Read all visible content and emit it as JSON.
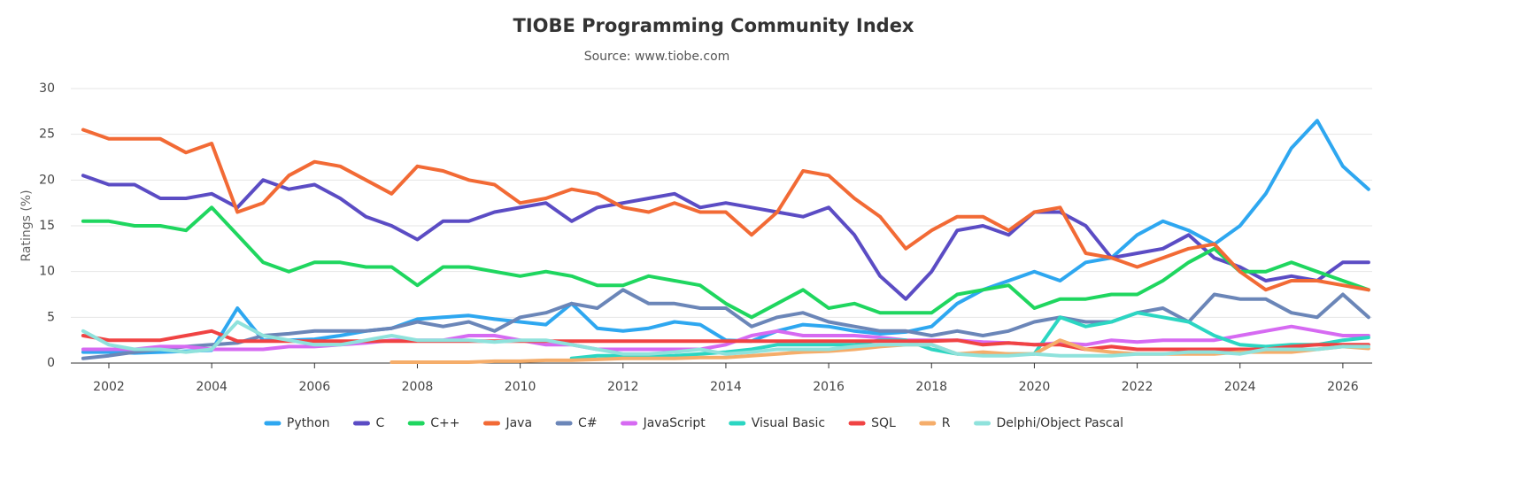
{
  "chart_data": {
    "type": "line",
    "title": "TIOBE Programming Community Index",
    "subtitle": "Source: www.tiobe.com",
    "y_label": "Ratings (%)",
    "xlim": [
      2001.26,
      2026.57
    ],
    "xticks": [
      2002,
      2004,
      2006,
      2008,
      2010,
      2012,
      2014,
      2016,
      2018,
      2020,
      2022,
      2024,
      2026
    ],
    "ylim": [
      0,
      30
    ],
    "yticks": [
      0,
      5,
      10,
      15,
      20,
      25,
      30
    ],
    "grid": true,
    "legend": "bottom",
    "x": [
      2001.5,
      2002,
      2002.5,
      2003,
      2003.5,
      2004,
      2004.5,
      2005,
      2005.5,
      2006,
      2006.5,
      2007,
      2007.5,
      2008,
      2008.5,
      2009,
      2009.5,
      2010,
      2010.5,
      2011,
      2011.5,
      2012,
      2012.5,
      2013,
      2013.5,
      2014,
      2014.5,
      2015,
      2015.5,
      2016,
      2016.5,
      2017,
      2017.5,
      2018,
      2018.5,
      2019,
      2019.5,
      2020,
      2020.5,
      2021,
      2021.5,
      2022,
      2022.5,
      2023,
      2023.5,
      2024,
      2024.5,
      2025,
      2025.5,
      2026,
      2026.5
    ],
    "series": [
      {
        "name": "Python",
        "color": "#2ea7f0",
        "values": [
          1.2,
          1.2,
          1.1,
          1.2,
          1.3,
          1.4,
          6.0,
          2.5,
          2.5,
          2.6,
          3.0,
          3.5,
          3.8,
          4.8,
          5.0,
          5.2,
          4.8,
          4.5,
          4.2,
          6.5,
          3.8,
          3.5,
          3.8,
          4.5,
          4.2,
          2.5,
          2.4,
          3.5,
          4.2,
          4.0,
          3.5,
          3.2,
          3.4,
          4.0,
          6.5,
          8.0,
          9.0,
          10.0,
          9.0,
          11.0,
          11.5,
          14.0,
          15.5,
          14.5,
          13.0,
          15.0,
          18.5,
          23.5,
          26.5,
          21.5,
          19.0
        ]
      },
      {
        "name": "C",
        "color": "#5b4cc4",
        "values": [
          20.5,
          19.5,
          19.5,
          18.0,
          18.0,
          18.5,
          17.0,
          20.0,
          19.0,
          19.5,
          18.0,
          16.0,
          15.0,
          13.5,
          15.5,
          15.5,
          16.5,
          17.0,
          17.5,
          15.5,
          17.0,
          17.5,
          18.0,
          18.5,
          17.0,
          17.5,
          17.0,
          16.5,
          16.0,
          17.0,
          14.0,
          9.5,
          7.0,
          10.0,
          14.5,
          15.0,
          14.0,
          16.5,
          16.5,
          15.0,
          11.5,
          12.0,
          12.5,
          14.0,
          11.5,
          10.5,
          9.0,
          9.5,
          9.0,
          11.0,
          11.0
        ]
      },
      {
        "name": "C++",
        "color": "#1fd65f",
        "values": [
          15.5,
          15.5,
          15.0,
          15.0,
          14.5,
          17.0,
          14.0,
          11.0,
          10.0,
          11.0,
          11.0,
          10.5,
          10.5,
          8.5,
          10.5,
          10.5,
          10.0,
          9.5,
          10.0,
          9.5,
          8.5,
          8.5,
          9.5,
          9.0,
          8.5,
          6.5,
          5.0,
          6.5,
          8.0,
          6.0,
          6.5,
          5.5,
          5.5,
          5.5,
          7.5,
          8.0,
          8.5,
          6.0,
          7.0,
          7.0,
          7.5,
          7.5,
          9.0,
          11.0,
          12.5,
          10.0,
          10.0,
          11.0,
          10.0,
          9.0,
          8.0
        ]
      },
      {
        "name": "Java",
        "color": "#f26a35",
        "values": [
          25.5,
          24.5,
          24.5,
          24.5,
          23.0,
          24.0,
          16.5,
          17.5,
          20.5,
          22.0,
          21.5,
          20.0,
          18.5,
          21.5,
          21.0,
          20.0,
          19.5,
          17.5,
          18.0,
          19.0,
          18.5,
          17.0,
          16.5,
          17.5,
          16.5,
          16.5,
          14.0,
          16.5,
          21.0,
          20.5,
          18.0,
          16.0,
          12.5,
          14.5,
          16.0,
          16.0,
          14.5,
          16.5,
          17.0,
          12.0,
          11.5,
          10.5,
          11.5,
          12.5,
          13.0,
          10.0,
          8.0,
          9.0,
          9.0,
          8.5,
          8.0
        ]
      },
      {
        "name": "C#",
        "color": "#6b86b8",
        "values": [
          0.5,
          0.8,
          1.2,
          1.5,
          1.8,
          2.0,
          2.2,
          3.0,
          3.2,
          3.5,
          3.5,
          3.5,
          3.8,
          4.5,
          4.0,
          4.5,
          3.5,
          5.0,
          5.5,
          6.5,
          6.0,
          8.0,
          6.5,
          6.5,
          6.0,
          6.0,
          4.0,
          5.0,
          5.5,
          4.5,
          4.0,
          3.5,
          3.5,
          3.0,
          3.5,
          3.0,
          3.5,
          4.5,
          5.0,
          4.5,
          4.5,
          5.5,
          6.0,
          4.5,
          7.5,
          7.0,
          7.0,
          5.5,
          5.0,
          7.5,
          5.0
        ]
      },
      {
        "name": "JavaScript",
        "color": "#d66af2",
        "values": [
          1.5,
          1.5,
          1.5,
          1.8,
          1.8,
          1.5,
          1.5,
          1.5,
          1.8,
          1.8,
          2.0,
          2.2,
          2.5,
          2.5,
          2.5,
          3.0,
          3.0,
          2.5,
          2.0,
          2.0,
          1.5,
          1.5,
          1.5,
          1.5,
          1.5,
          2.0,
          3.0,
          3.5,
          3.0,
          3.0,
          3.0,
          2.8,
          2.5,
          2.5,
          2.5,
          2.3,
          2.2,
          2.0,
          2.2,
          2.0,
          2.5,
          2.3,
          2.5,
          2.5,
          2.5,
          3.0,
          3.5,
          4.0,
          3.5,
          3.0,
          3.0
        ]
      },
      {
        "name": "Visual Basic",
        "color": "#2bd6c2",
        "values": [
          null,
          null,
          null,
          null,
          null,
          null,
          null,
          null,
          null,
          null,
          null,
          null,
          null,
          null,
          null,
          null,
          null,
          null,
          null,
          0.5,
          0.8,
          0.8,
          0.7,
          0.8,
          1.0,
          1.2,
          1.5,
          2.0,
          2.0,
          2.0,
          2.0,
          2.5,
          2.5,
          1.5,
          1.0,
          1.0,
          1.0,
          1.0,
          5.0,
          4.0,
          4.5,
          5.5,
          5.0,
          4.5,
          3.0,
          2.0,
          1.8,
          2.0,
          2.0,
          2.5,
          2.8
        ]
      },
      {
        "name": "SQL",
        "color": "#f04343",
        "values": [
          3.0,
          2.5,
          2.5,
          2.5,
          3.0,
          3.5,
          2.4,
          2.4,
          2.4,
          2.4,
          2.4,
          2.4,
          2.4,
          2.4,
          2.4,
          2.4,
          2.4,
          2.4,
          2.4,
          2.4,
          2.4,
          2.4,
          2.4,
          2.4,
          2.4,
          2.4,
          2.4,
          2.4,
          2.4,
          2.4,
          2.4,
          2.4,
          2.4,
          2.4,
          2.5,
          2.0,
          2.2,
          2.0,
          2.0,
          1.5,
          1.8,
          1.5,
          1.5,
          1.5,
          1.5,
          1.5,
          1.5,
          1.8,
          2.0,
          2.0,
          2.0
        ]
      },
      {
        "name": "R",
        "color": "#f5ad6a",
        "values": [
          null,
          null,
          null,
          null,
          null,
          null,
          null,
          null,
          null,
          null,
          null,
          null,
          0.1,
          0.1,
          0.1,
          0.1,
          0.2,
          0.2,
          0.3,
          0.3,
          0.4,
          0.5,
          0.5,
          0.5,
          0.6,
          0.6,
          0.8,
          1.0,
          1.2,
          1.3,
          1.5,
          1.8,
          2.0,
          2.0,
          1.0,
          1.2,
          1.0,
          1.0,
          2.5,
          1.5,
          1.2,
          1.0,
          1.0,
          1.0,
          1.0,
          1.2,
          1.2,
          1.2,
          1.5,
          1.8,
          1.6
        ]
      },
      {
        "name": "Delphi/Object Pascal",
        "color": "#8fe2dc",
        "values": [
          3.5,
          2.0,
          1.5,
          1.5,
          1.2,
          1.5,
          4.5,
          3.0,
          2.5,
          2.0,
          2.0,
          2.5,
          3.0,
          2.5,
          2.5,
          2.5,
          2.3,
          2.5,
          2.5,
          2.0,
          1.5,
          1.0,
          1.0,
          1.2,
          1.5,
          1.0,
          1.2,
          1.5,
          1.5,
          1.5,
          1.8,
          2.0,
          2.0,
          2.0,
          1.0,
          0.8,
          0.8,
          1.0,
          0.8,
          0.8,
          0.8,
          1.0,
          1.0,
          1.2,
          1.2,
          1.0,
          1.5,
          1.5,
          1.5,
          1.8,
          1.8
        ]
      }
    ]
  }
}
